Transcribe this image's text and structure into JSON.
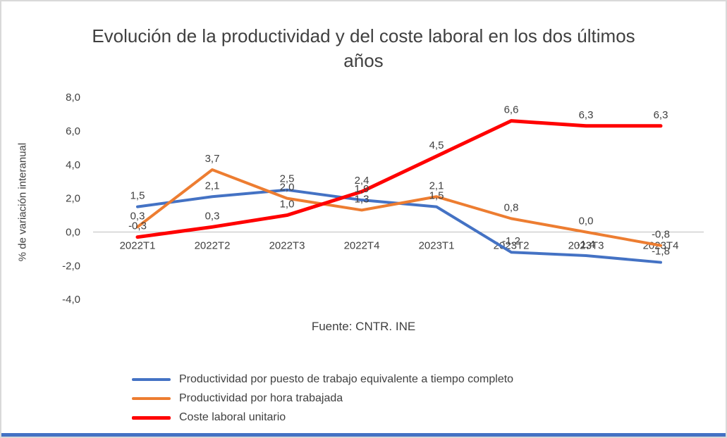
{
  "title": "Evolución de la productividad y del coste laboral en los dos últimos años",
  "source": "Fuente: CNTR. INE",
  "accent_colors": {
    "series_blue": "#4472C4",
    "series_orange": "#ED7D31",
    "series_red": "#FF0000",
    "frame_border": "#d9d9d9",
    "bottom_bar": "#4472C4",
    "text": "#404040",
    "axis_line": "#bfbfbf"
  },
  "chart_data": {
    "type": "line",
    "categories": [
      "2022T1",
      "2022T2",
      "2022T3",
      "2022T4",
      "2023T1",
      "2023T2",
      "2023T3",
      "2023T4"
    ],
    "ylabel": "% de variación interanual",
    "xlabel": "",
    "ylim": [
      -4,
      8
    ],
    "yticks": [
      8,
      6,
      4,
      2,
      0,
      -2,
      -4
    ],
    "ytick_labels": [
      "8,0",
      "6,0",
      "4,0",
      "2,0",
      "0,0",
      "-2,0",
      "-4,0"
    ],
    "grid": false,
    "legend_position": "bottom-left",
    "series": [
      {
        "name": "Productividad por puesto de trabajo equivalente a tiempo completo",
        "color": "#4472C4",
        "stroke_width": 4,
        "values": [
          1.5,
          2.1,
          2.5,
          1.9,
          1.5,
          -1.2,
          -1.4,
          -1.8
        ],
        "labels": [
          "1,5",
          "2,1",
          "2,5",
          "1,9",
          "1,5",
          "-1,2",
          "-1,4",
          "-1,8"
        ]
      },
      {
        "name": "Productividad por hora trabajada",
        "color": "#ED7D31",
        "stroke_width": 4,
        "values": [
          0.3,
          3.7,
          2.0,
          1.3,
          2.1,
          0.8,
          0.0,
          -0.8
        ],
        "labels": [
          "0,3",
          "3,7",
          "2,0",
          "1,3",
          "2,1",
          "0,8",
          "0,0",
          "-0,8"
        ]
      },
      {
        "name": "Coste laboral unitario",
        "color": "#FF0000",
        "stroke_width": 5,
        "values": [
          -0.3,
          0.3,
          1.0,
          2.4,
          4.5,
          6.6,
          6.3,
          6.3
        ],
        "labels": [
          "-0,3",
          "0,3",
          "1,0",
          "2,4",
          "4,5",
          "6,6",
          "6,3",
          "6,3"
        ]
      }
    ]
  }
}
